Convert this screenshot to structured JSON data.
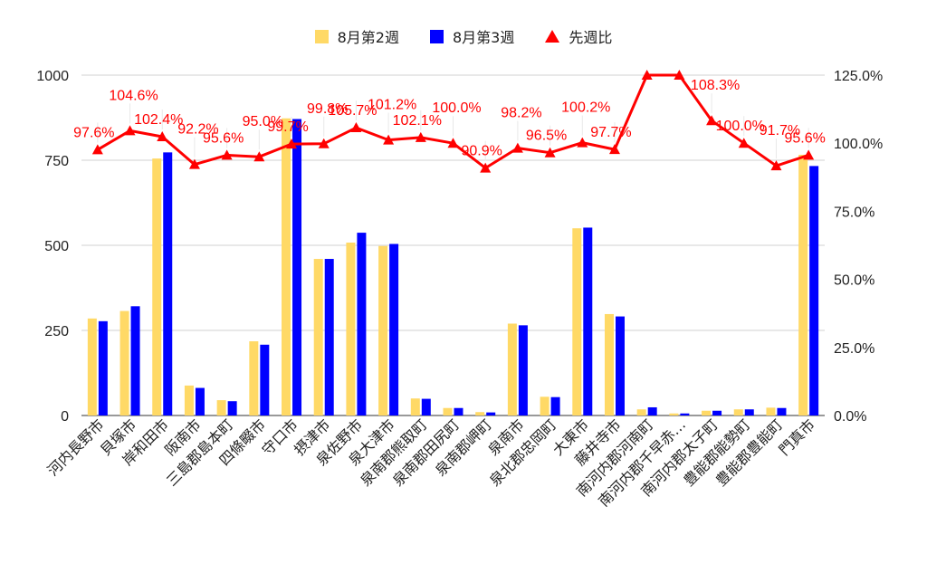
{
  "chart_data": {
    "type": "bar",
    "title": "",
    "xlabel": "",
    "ylabel": "",
    "categories": [
      "河内長野市",
      "貝塚市",
      "岸和田市",
      "阪南市",
      "三島郡島本町",
      "四條畷市",
      "守口市",
      "摂津市",
      "泉佐野市",
      "泉大津市",
      "泉南郡熊取町",
      "泉南郡田尻町",
      "泉南郡岬町",
      "泉南市",
      "泉北郡忠岡町",
      "大東市",
      "藤井寺市",
      "南河内郡河南町",
      "南河内郡千早赤…",
      "南河内郡太子町",
      "豊能郡能勢町",
      "豊能郡豊能町",
      "門真市"
    ],
    "series": [
      {
        "name": "8月第2週",
        "color": "#ffd966",
        "values": [
          285,
          307,
          755,
          88,
          45,
          218,
          873,
          460,
          508,
          498,
          50,
          22,
          10,
          270,
          55,
          550,
          298,
          18,
          6,
          14,
          18,
          23,
          766
        ]
      },
      {
        "name": "8月第3週",
        "color": "#0000ff",
        "values": [
          277,
          321,
          773,
          81,
          42,
          208,
          871,
          460,
          537,
          504,
          49,
          22,
          9,
          265,
          54,
          552,
          291,
          24,
          6,
          14,
          18,
          22,
          733
        ]
      },
      {
        "name": "先週比",
        "color": "#ff0000",
        "axis": "right",
        "values": [
          97.6,
          104.6,
          102.4,
          92.2,
          95.6,
          95.0,
          99.7,
          99.8,
          105.7,
          101.2,
          102.1,
          100.0,
          90.9,
          98.2,
          96.5,
          100.2,
          97.7,
          125.0,
          125.0,
          108.3,
          100.0,
          91.7,
          95.6
        ],
        "labels": [
          "97.6%",
          "104.6%",
          "102.4%",
          "92.2%",
          "95.6%",
          "95.0%",
          "99.7%",
          "99.8%",
          "105.7%",
          "101.2%",
          "102.1%",
          "100.0%",
          "90.9%",
          "98.2%",
          "96.5%",
          "100.2%",
          "97.7%",
          "",
          "",
          "108.3%",
          "100.0%",
          "91.7%",
          "95.6%"
        ]
      }
    ],
    "y_left": {
      "min": 0,
      "max": 1000,
      "ticks": [
        "0",
        "250",
        "500",
        "750",
        "1000"
      ],
      "tick_values": [
        0,
        250,
        500,
        750,
        1000
      ]
    },
    "y_right": {
      "min": 0,
      "max": 125,
      "ticks": [
        "0.0%",
        "25.0%",
        "50.0%",
        "75.0%",
        "100.0%",
        "125.0%"
      ],
      "tick_values": [
        0,
        25,
        50,
        75,
        100,
        125
      ]
    },
    "grid": true,
    "legend_position": "top-center"
  }
}
